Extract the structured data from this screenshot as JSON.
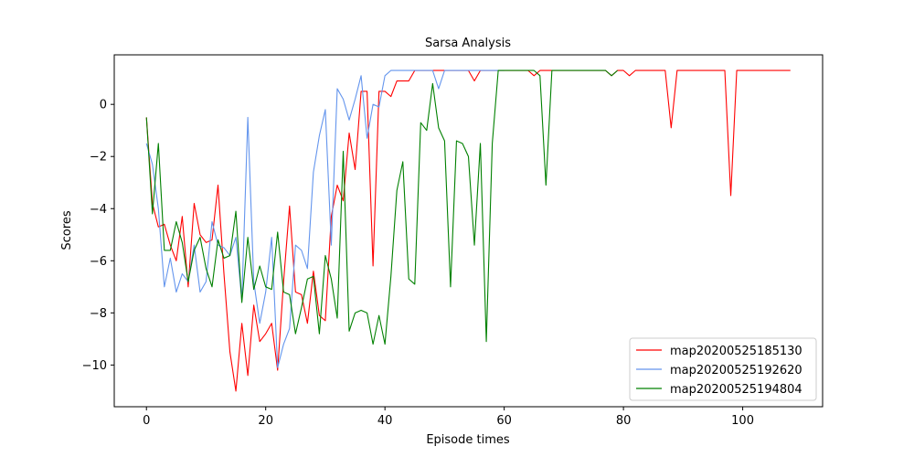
{
  "chart_data": {
    "type": "line",
    "title": "Sarsa Analysis",
    "xlabel": "Episode times",
    "ylabel": "Scores",
    "xlim": [
      -5.4,
      113.4
    ],
    "ylim": [
      -11.6,
      1.9
    ],
    "xticks": [
      0,
      20,
      40,
      60,
      80,
      100
    ],
    "yticks": [
      -10,
      -8,
      -6,
      -4,
      -2,
      0
    ],
    "xtick_labels": [
      "0",
      "20",
      "40",
      "60",
      "80",
      "100"
    ],
    "ytick_labels": [
      "−10",
      "−8",
      "−6",
      "−4",
      "−2",
      "0"
    ],
    "grid": false,
    "legend_position": "lower-right",
    "series": [
      {
        "name": "map20200525185130",
        "color": "#ff0000",
        "values": [
          -0.5,
          -3.8,
          -4.7,
          -4.6,
          -5.4,
          -6.0,
          -4.3,
          -7.0,
          -3.8,
          -5.0,
          -5.3,
          -5.2,
          -3.1,
          -6.5,
          -9.5,
          -11.0,
          -8.4,
          -10.4,
          -7.7,
          -9.1,
          -8.8,
          -8.4,
          -10.2,
          -6.8,
          -3.9,
          -7.2,
          -7.3,
          -8.4,
          -6.4,
          -8.1,
          -8.3,
          -4.3,
          -3.1,
          -3.7,
          -1.1,
          -2.5,
          0.5,
          0.5,
          -6.2,
          0.5,
          0.5,
          0.3,
          0.9,
          0.9,
          0.9,
          1.3,
          1.3,
          1.3,
          1.3,
          1.3,
          1.3,
          1.3,
          1.3,
          1.3,
          1.3,
          0.9,
          1.3,
          1.3,
          1.3,
          1.3,
          1.3,
          1.3,
          1.3,
          1.3,
          1.3,
          1.1,
          1.3,
          1.3,
          1.3,
          1.3,
          1.3,
          1.3,
          1.3,
          1.3,
          1.3,
          1.3,
          1.3,
          1.3,
          1.1,
          1.3,
          1.3,
          1.1,
          1.3,
          1.3,
          1.3,
          1.3,
          1.3,
          1.3,
          -0.9,
          1.3,
          1.3,
          1.3,
          1.3,
          1.3,
          1.3,
          1.3,
          1.3,
          1.3,
          -3.5,
          1.3,
          1.3,
          1.3,
          1.3,
          1.3,
          1.3,
          1.3,
          1.3,
          1.3,
          1.3
        ]
      },
      {
        "name": "map20200525192620",
        "color": "#6495ed",
        "values": [
          -1.5,
          -2.3,
          -4.0,
          -7.0,
          -5.9,
          -7.2,
          -6.5,
          -6.8,
          -5.4,
          -7.2,
          -6.8,
          -4.5,
          -5.4,
          -5.5,
          -5.8,
          -5.1,
          -7.5,
          -0.5,
          -6.8,
          -8.4,
          -7.2,
          -5.1,
          -10.1,
          -9.2,
          -8.6,
          -5.4,
          -5.6,
          -6.3,
          -2.6,
          -1.2,
          -0.2,
          -5.4,
          0.6,
          0.2,
          -0.6,
          0.2,
          1.1,
          -1.3,
          0.0,
          -0.1,
          1.1,
          1.3,
          1.3,
          1.3,
          1.3,
          1.3,
          1.3,
          1.3,
          1.3,
          0.6,
          1.3,
          1.3,
          1.3,
          1.3,
          1.3,
          1.3,
          1.3,
          1.3,
          1.3,
          1.3,
          1.3
        ]
      },
      {
        "name": "map20200525194804",
        "color": "#008000",
        "values": [
          -0.5,
          -4.2,
          -1.5,
          -5.6,
          -5.6,
          -4.5,
          -5.3,
          -6.8,
          -5.6,
          -5.1,
          -6.3,
          -7.0,
          -5.2,
          -5.9,
          -5.8,
          -4.1,
          -7.6,
          -5.1,
          -7.1,
          -6.2,
          -7.0,
          -7.1,
          -4.9,
          -7.2,
          -7.3,
          -8.8,
          -7.8,
          -6.7,
          -6.6,
          -8.8,
          -5.8,
          -6.7,
          -8.2,
          -1.8,
          -8.7,
          -8.0,
          -7.9,
          -8.0,
          -9.2,
          -8.1,
          -9.2,
          -6.6,
          -3.3,
          -2.2,
          -6.7,
          -6.9,
          -0.7,
          -1.0,
          0.8,
          -0.9,
          -1.4,
          -7.0,
          -1.4,
          -1.5,
          -2.0,
          -5.4,
          -1.5,
          -9.1,
          -1.5,
          1.3,
          1.3,
          1.3,
          1.3,
          1.3,
          1.3,
          1.3,
          1.1,
          -3.1,
          1.3,
          1.3,
          1.3,
          1.3,
          1.3,
          1.3,
          1.3,
          1.3,
          1.3,
          1.3,
          1.1,
          1.3
        ]
      }
    ]
  }
}
